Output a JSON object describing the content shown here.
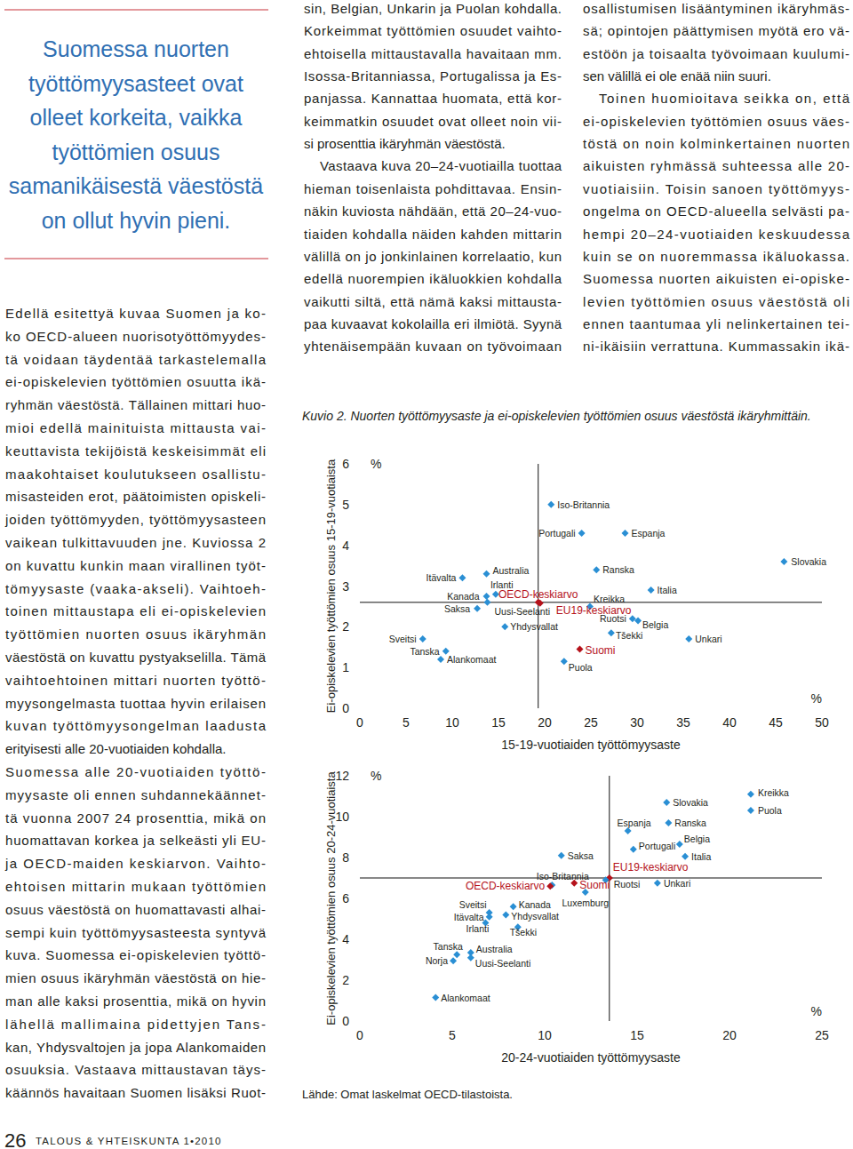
{
  "page": {
    "heading": [
      "Suomessa nuorten",
      "työttömyysasteet ovat",
      "olleet korkeita, vaikka",
      "työttömien osuus",
      "samanikäisestä väestöstä",
      "on ollut hyvin pieni."
    ],
    "columns": [
      {
        "paragraphs": [
          [
            "Edellä esitettyä kuvaa Suomen ja ko-",
            "ko OECD-alueen nuorisotyöttömyydes-",
            "tä voidaan täydentää tarkastelemalla",
            "ei-opiskelevien työttömien osuutta ikä-",
            "ryhmän väestöstä. Tällainen mittari huo-",
            "mioi edellä mainituista mittausta vai-",
            "keuttavista tekijöistä keskeisimmät eli",
            "maakohtaiset koulutukseen osallistu-",
            "misasteiden erot, päätoimisten opiskeli-",
            "joiden työttömyyden, työttömyysasteen",
            "vaikean tulkittavuuden jne. Kuviossa 2",
            "on kuvattu kunkin maan virallinen työt-",
            "tömyysaste (vaaka-akseli). Vaihtoeh-",
            "toinen mittaustapa eli ei-opiskelevien",
            "työttömien nuorten osuus ikäryhmän",
            "väestöstä on kuvattu pystyakselilla. Tämä",
            "vaihtoehtoinen mittari nuorten työttö-",
            "myysongelmasta tuottaa hyvin erilaisen",
            "kuvan työttömyysongelman laadusta",
            "erityisesti alle 20-vuotiaiden kohdalla."
          ],
          [
            "Suomessa alle 20-vuotiaiden työttö-",
            "myysaste oli ennen suhdannekäännet-",
            "tä vuonna 2007 24 prosenttia, mikä on",
            "huomattavan korkea ja selkeästi yli EU-",
            "ja OECD-maiden keskiarvon. Vaihto-",
            "ehtoisen mittarin mukaan työttömien",
            "osuus väestöstä on huomattavasti alhai-",
            "sempi kuin työttömyysasteesta syntyvä",
            "kuva. Suomessa ei-opiskelevien työttö-",
            "mien osuus ikäryhmän väestöstä on hie-",
            "man alle kaksi prosenttia, mikä on hyvin",
            "lähellä mallimaina pidettyjen Tans-",
            "kan, Yhdysvaltojen ja jopa Alankomaiden",
            "osuuksia. Vastaava mittaustavan täys-",
            "käännös havaitaan Suomen lisäksi Ruot-"
          ]
        ]
      },
      {
        "paragraphs": [
          [
            "sin, Belgian, Unkarin ja Puolan kohdalla.",
            "Korkeimmat työttömien osuudet vaihto-",
            "ehtoisella mittaustavalla havaitaan mm.",
            "Isossa-Britanniassa, Portugalissa ja Es-",
            "panjassa. Kannattaa huomata, että kor-",
            "keimmatkin osuudet ovat olleet noin vii-",
            "si prosenttia ikäryhmän väestöstä."
          ],
          [
            "Vastaava kuva 20–24-vuotiailla tuottaa",
            "hieman toisenlaista pohdittavaa. Ensin-",
            "näkin kuviosta nähdään, että 20–24-vuo-",
            "tiaiden kohdalla näiden kahden mittarin",
            "välillä on jo jonkinlainen korrelaatio, kun",
            "edellä nuorempien ikäluokkien kohdalla",
            "vaikutti siltä, että nämä kaksi mittausta-",
            "paa kuvaavat kokolailla eri ilmiötä. Syynä",
            "yhtenäisempään kuvaan on työvoimaan"
          ]
        ]
      },
      {
        "paragraphs": [
          [
            "osallistumisen lisääntyminen ikäryhmäs-",
            "sä; opintojen päättymisen myötä ero vä-",
            "estöön ja toisaalta työvoimaan kuulumi-",
            "sen välillä ei ole enää niin suuri."
          ],
          [
            "Toinen huomioitava seikka on, että",
            "ei-opiskelevien työttömien osuus väes-",
            "töstä on noin kolminkertainen nuorten",
            "aikuisten ryhmässä suhteessa alle 20-",
            "vuotiaisiin. Toisin sanoen työttömyys-",
            "ongelma on OECD-alueella selvästi pa-",
            "hempi 20–24-vuotiaiden keskuudessa",
            "kuin se on nuoremmassa ikäluokassa.",
            "Suomessa nuorten aikuisten ei-opiske-",
            "levien työttömien osuus väestöstä oli",
            "ennen taantumaa yli nelinkertainen tei-",
            "ni-ikäisiin verrattuna. Kummassakin ikä-"
          ]
        ]
      }
    ],
    "caption": "Kuvio 2. Nuorten työttömyysaste ja ei-opiskelevien työttömien osuus väestöstä ikäryhmittäin.",
    "source": "Lähde: Omat laskelmat OECD-tilastoista.",
    "page_number": 26,
    "publication": "TALOUS & YHTEISKUNTA 1•2010"
  },
  "chart_data": [
    {
      "type": "scatter",
      "xlabel": "15-19-vuotiaiden työttömyysaste",
      "ylabel": "Ei-opiskelevien työttömien osuus 15-19-vuotiaista",
      "x_unit": "%",
      "y_unit": "%",
      "point_labels": [
        "Iso-Britannia",
        "Portugali",
        "Espanja",
        "Slovakia",
        "Ranska",
        "Australia",
        "Itävalta",
        "Irlanti",
        "Kanada",
        "OECD-keskiarvo",
        "Kreikka",
        "Italia",
        "Saksa",
        "Uusi-Seelanti",
        "EU19-keskiarvo",
        "Yhdysvallat",
        "Ruotsi",
        "Belgia",
        "Tšekki",
        "Suomi",
        "Unkari",
        "Sveitsi",
        "Tanska",
        "Alankomaat",
        "Puola"
      ],
      "x": [
        20.7,
        24.0,
        28.7,
        45.9,
        25.6,
        13.7,
        11.1,
        14.7,
        13.7,
        19.3,
        24.9,
        31.5,
        12.7,
        13.8,
        19.5,
        15.7,
        29.5,
        30.1,
        27.2,
        23.8,
        35.6,
        6.8,
        9.3,
        8.75,
        22.1
      ],
      "values": [
        5.0,
        4.3,
        4.3,
        3.6,
        3.4,
        3.3,
        3.2,
        2.8,
        2.75,
        2.6,
        2.5,
        2.9,
        2.45,
        2.6,
        2.58,
        2.0,
        2.2,
        2.15,
        1.85,
        1.45,
        1.7,
        1.7,
        1.4,
        1.2,
        1.15
      ],
      "colors": [
        "#2a8fd4",
        "#2a8fd4",
        "#2a8fd4",
        "#2a8fd4",
        "#2a8fd4",
        "#2a8fd4",
        "#2a8fd4",
        "#2a8fd4",
        "#2a8fd4",
        "#b5121b",
        "#2a8fd4",
        "#2a8fd4",
        "#2a8fd4",
        "#2a8fd4",
        "#b5121b",
        "#2a8fd4",
        "#2a8fd4",
        "#2a8fd4",
        "#2a8fd4",
        "#b5121b",
        "#2a8fd4",
        "#2a8fd4",
        "#2a8fd4",
        "#2a8fd4",
        "#2a8fd4"
      ],
      "marker": "diamond",
      "grid": false,
      "xlim": [
        0,
        50
      ],
      "ylim": [
        0,
        6
      ],
      "xticks": [
        0,
        5,
        10,
        15,
        20,
        25,
        30,
        35,
        40,
        45,
        50
      ],
      "yticks": [
        0,
        1,
        2,
        3,
        4,
        5,
        6
      ],
      "reference_lines": {
        "x": 19.3,
        "y": 2.6
      }
    },
    {
      "type": "scatter",
      "xlabel": "20-24-vuotiaiden työttömyysaste",
      "ylabel": "Ei-opiskelevien työttömien osuus 20-24-vuotiaista",
      "x_unit": "%",
      "y_unit": "%",
      "point_labels": [
        "Kreikka",
        "Puola",
        "Slovakia",
        "Ranska",
        "Espanja",
        "Belgia",
        "Portugali",
        "Italia",
        "Saksa",
        "EU19-keskiarvo",
        "Ruotsi",
        "Unkari",
        "Iso-Britannia",
        "OECD-keskiarvo",
        "Suomi",
        "Luxemburg",
        "Kanada",
        "Sveitsi",
        "Itävalta",
        "Yhdysvallat",
        "Irlanti",
        "Tšekki",
        "Tanska",
        "Australia",
        "Norja",
        "Uusi-Seelanti",
        "Alankomaat"
      ],
      "x": [
        21.15,
        21.15,
        16.6,
        16.7,
        14.5,
        17.3,
        14.8,
        17.6,
        10.9,
        13.5,
        13.3,
        16.1,
        10.4,
        10.3,
        11.6,
        12.2,
        8.3,
        7.0,
        7.0,
        7.9,
        6.8,
        8.55,
        5.25,
        6.0,
        5.05,
        6.0,
        4.1
      ],
      "values": [
        11.1,
        10.3,
        10.7,
        9.7,
        9.3,
        8.65,
        8.4,
        8.05,
        8.1,
        7.0,
        6.9,
        6.75,
        6.65,
        6.6,
        6.75,
        6.3,
        5.6,
        5.3,
        5.1,
        5.2,
        4.8,
        4.6,
        3.25,
        3.35,
        2.95,
        3.1,
        1.15
      ],
      "colors": [
        "#2a8fd4",
        "#2a8fd4",
        "#2a8fd4",
        "#2a8fd4",
        "#2a8fd4",
        "#2a8fd4",
        "#2a8fd4",
        "#2a8fd4",
        "#2a8fd4",
        "#b5121b",
        "#2a8fd4",
        "#2a8fd4",
        "#2a8fd4",
        "#b5121b",
        "#b5121b",
        "#2a8fd4",
        "#2a8fd4",
        "#2a8fd4",
        "#2a8fd4",
        "#2a8fd4",
        "#2a8fd4",
        "#2a8fd4",
        "#2a8fd4",
        "#2a8fd4",
        "#2a8fd4",
        "#2a8fd4",
        "#2a8fd4"
      ],
      "marker": "diamond",
      "grid": false,
      "xlim": [
        0,
        25
      ],
      "ylim": [
        0,
        12
      ],
      "xticks": [
        0,
        5,
        10,
        15,
        20,
        25
      ],
      "yticks": [
        0,
        2,
        4,
        6,
        8,
        10,
        12
      ],
      "reference_lines": {
        "x": 13.5,
        "y": 7.0
      }
    }
  ]
}
